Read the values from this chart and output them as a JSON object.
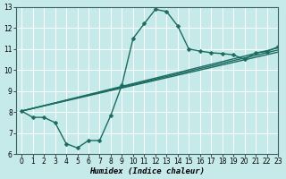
{
  "title": "",
  "xlabel": "Humidex (Indice chaleur)",
  "xlim": [
    -0.5,
    23
  ],
  "ylim": [
    6,
    13
  ],
  "xticks": [
    0,
    1,
    2,
    3,
    4,
    5,
    6,
    7,
    8,
    9,
    10,
    11,
    12,
    13,
    14,
    15,
    16,
    17,
    18,
    19,
    20,
    21,
    22,
    23
  ],
  "yticks": [
    6,
    7,
    8,
    9,
    10,
    11,
    12,
    13
  ],
  "bg_color": "#c6eaea",
  "line_color": "#1a6b60",
  "grid_color": "#ffffff",
  "lines": [
    {
      "x": [
        0,
        1,
        2,
        3,
        4,
        5,
        6,
        7,
        8,
        9,
        10,
        11,
        12,
        13,
        14,
        15,
        16,
        17,
        18,
        19,
        20,
        21,
        22,
        23
      ],
      "y": [
        8.05,
        7.75,
        7.75,
        7.5,
        6.5,
        6.3,
        6.65,
        6.65,
        7.85,
        9.3,
        11.5,
        12.2,
        12.88,
        12.78,
        12.1,
        11.0,
        10.9,
        10.82,
        10.78,
        10.72,
        10.5,
        10.82,
        10.88,
        11.1
      ],
      "markers": true
    },
    {
      "x": [
        0,
        23
      ],
      "y": [
        8.05,
        10.85
      ],
      "markers": false
    },
    {
      "x": [
        0,
        23
      ],
      "y": [
        8.05,
        10.95
      ],
      "markers": false
    },
    {
      "x": [
        0,
        23
      ],
      "y": [
        8.05,
        11.05
      ],
      "markers": false
    }
  ],
  "marker": "D",
  "markersize": 2.5,
  "linewidth": 1.0,
  "label_fontsize": 6.5,
  "tick_fontsize": 5.5
}
